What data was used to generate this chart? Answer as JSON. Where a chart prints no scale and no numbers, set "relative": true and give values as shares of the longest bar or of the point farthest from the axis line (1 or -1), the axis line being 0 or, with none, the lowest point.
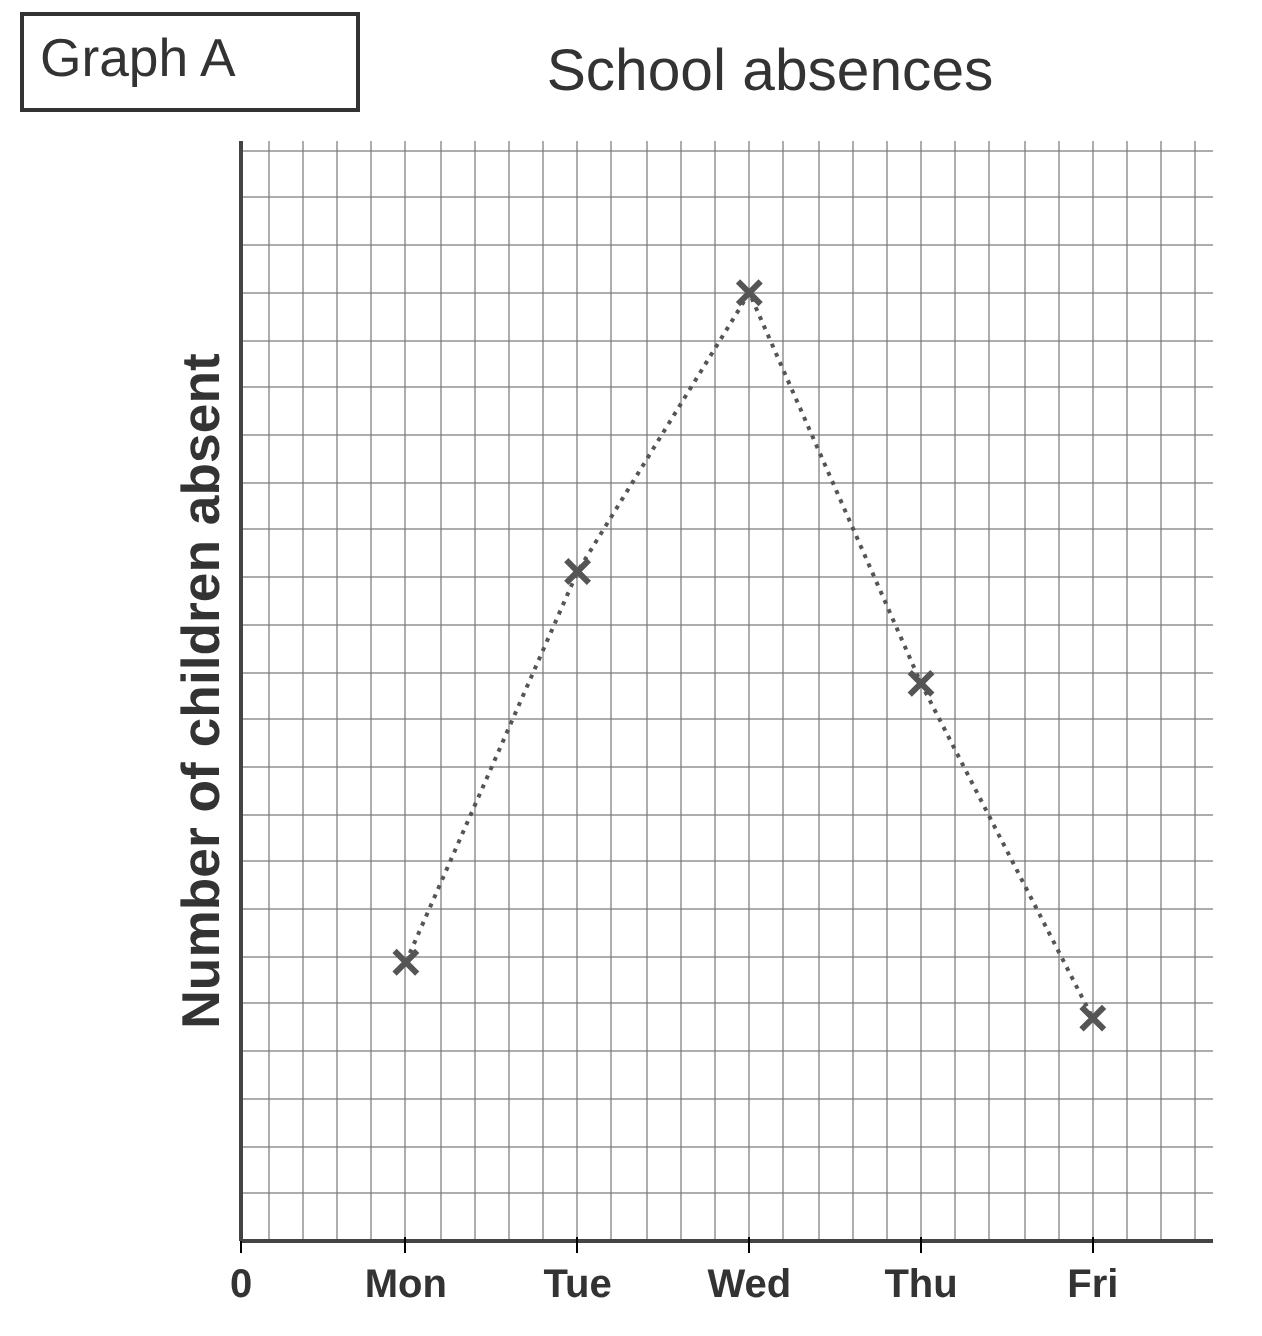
{
  "chart_data": {
    "type": "line",
    "title": "School absences",
    "ylabel": "Number of children absent",
    "categories": [
      "Mon",
      "Tue",
      "Wed",
      "Thu",
      "Fri"
    ],
    "series": [
      {
        "color": "#555555",
        "values": [
          0.294,
          0.706,
          1,
          0.588,
          0.235
        ]
      }
    ],
    "relative": true,
    "marker": "cross",
    "line_style": "dotted",
    "grid": true,
    "annotations": [
      "Graph A",
      "0"
    ]
  }
}
